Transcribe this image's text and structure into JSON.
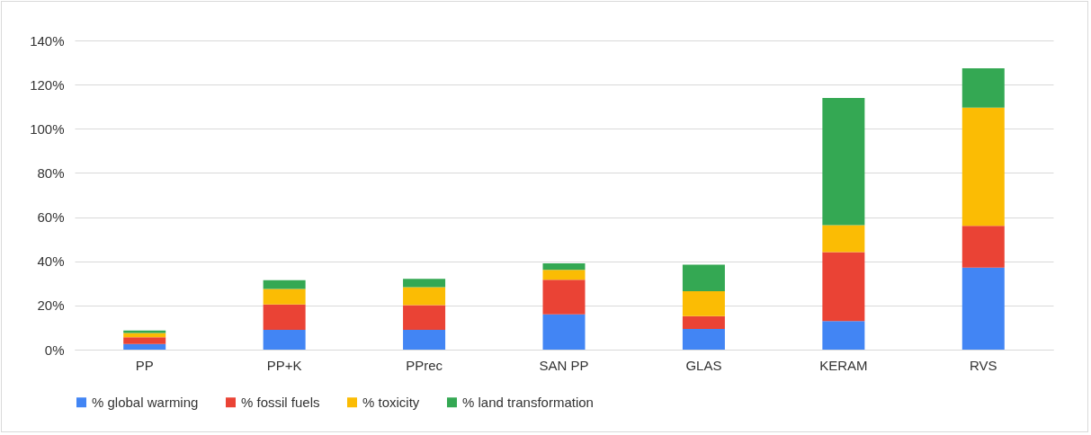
{
  "chart_data": {
    "type": "bar",
    "stacked": true,
    "categories": [
      "PP",
      "PP+K",
      "PPrec",
      "SAN PP",
      "GLAS",
      "KERAM",
      "RVS"
    ],
    "series": [
      {
        "name": "% global warming",
        "color": "#4285f4",
        "values": [
          2.5,
          9.0,
          9.0,
          16.0,
          9.4,
          12.9,
          37.1
        ]
      },
      {
        "name": "% fossil fuels",
        "color": "#ea4335",
        "values": [
          3.1,
          11.4,
          11.1,
          15.6,
          5.8,
          31.3,
          19.0
        ]
      },
      {
        "name": "% toxicity",
        "color": "#fbbc04",
        "values": [
          1.9,
          7.1,
          8.2,
          4.5,
          11.3,
          12.2,
          53.5
        ]
      },
      {
        "name": "% land transformation",
        "color": "#34a853",
        "values": [
          1.1,
          3.9,
          3.7,
          3.0,
          12.0,
          57.6,
          17.8
        ]
      }
    ],
    "ylim": [
      0,
      140
    ],
    "yticks": [
      {
        "value": 0,
        "label": "0%"
      },
      {
        "value": 20,
        "label": "20%"
      },
      {
        "value": 40,
        "label": "40%"
      },
      {
        "value": 60,
        "label": "60%"
      },
      {
        "value": 80,
        "label": "80%"
      },
      {
        "value": 100,
        "label": "100%"
      },
      {
        "value": 120,
        "label": "120%"
      },
      {
        "value": 140,
        "label": "140%"
      }
    ],
    "grid": "y",
    "legend": "bottom"
  }
}
